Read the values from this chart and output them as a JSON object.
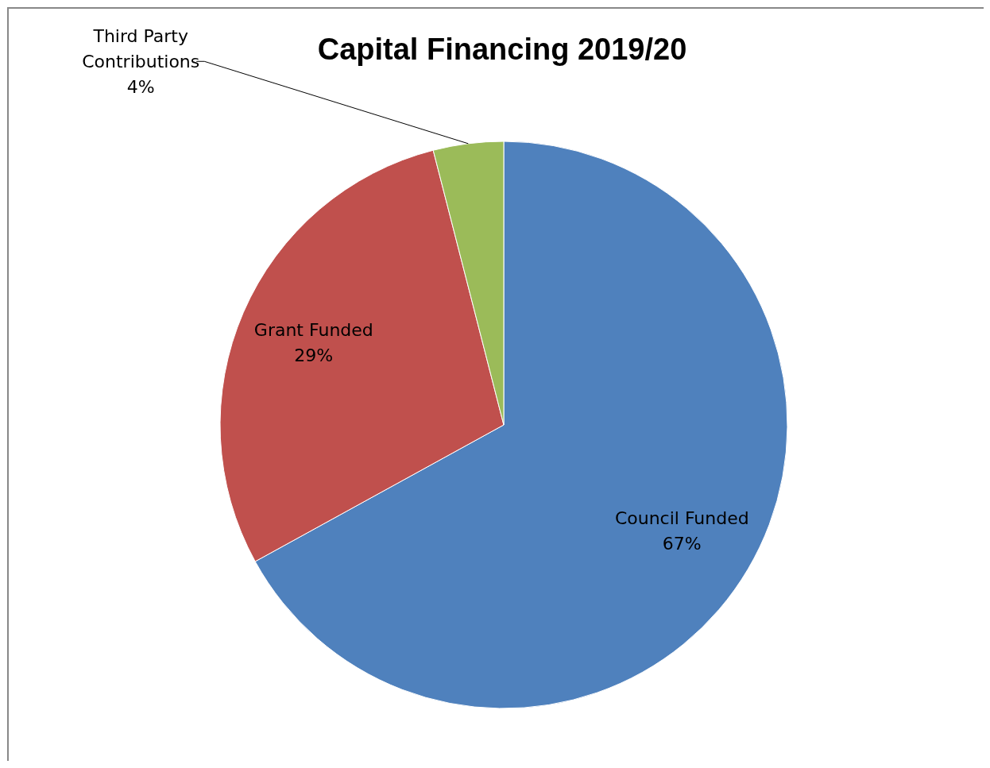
{
  "chart_data": {
    "type": "pie",
    "title": "Capital Financing 2019/20",
    "categories": [
      "Council Funded",
      "Grant Funded",
      "Third Party Contributions"
    ],
    "values": [
      67,
      29,
      4
    ],
    "colors": [
      "#4f81bd",
      "#c0504d",
      "#9bbb59"
    ],
    "value_labels": [
      "67%",
      "29%",
      "4%"
    ]
  }
}
